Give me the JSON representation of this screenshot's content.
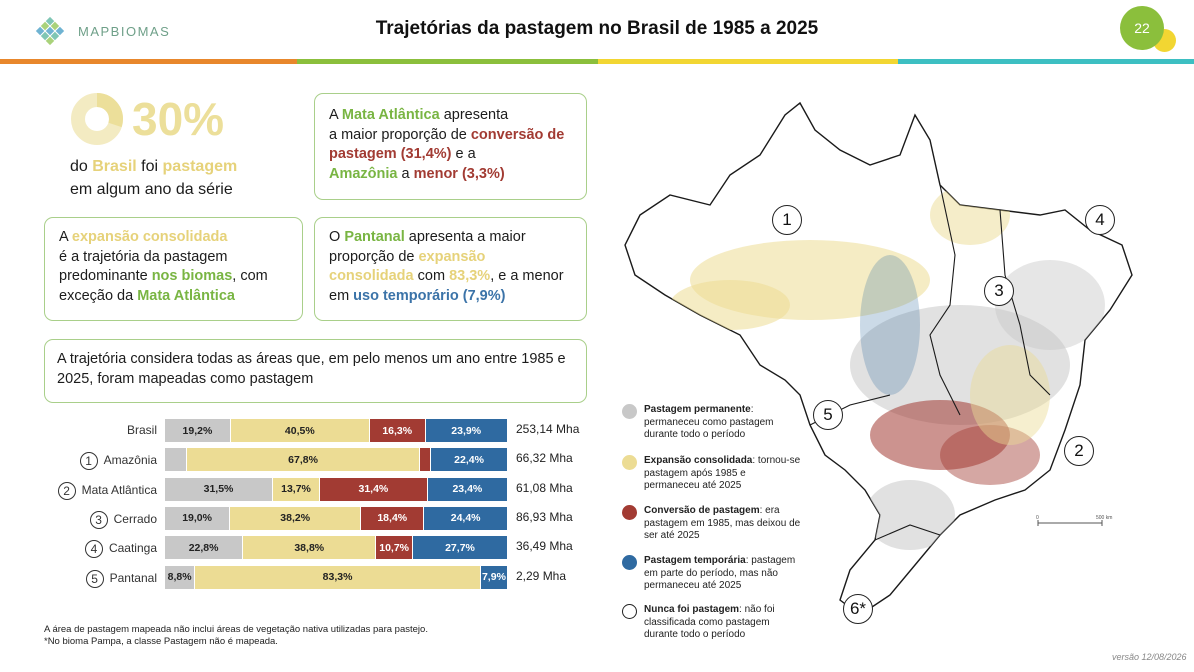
{
  "header": {
    "logo_text": "MAPBIOMAS",
    "title": "Trajetórias da pastagem no Brasil de 1985 a 2025",
    "page_number": "22"
  },
  "stripe_colors": [
    "#e8872c",
    "#8bbf3c",
    "#f2d632",
    "#3dbfc2"
  ],
  "highlight": {
    "percent": "30%",
    "value": 0.3,
    "line1_pre": "do ",
    "line1_brasil": "Brasil",
    "line1_mid": " foi ",
    "line1_pastagem": "pastagem",
    "line2": "em algum ano da série"
  },
  "card_mata": {
    "p1": "A ",
    "mata": "Mata Atlântica",
    "p2": " apresenta",
    "p3": "a maior proporção de ",
    "conv": "conversão de pastagem (31,4%)",
    "p4": " e a",
    "amaz": "Amazônia",
    "p5": " a ",
    "menor": "menor (3,3%)"
  },
  "card_expansao": {
    "p1": "A ",
    "exp": "expansão consolidada",
    "p2": "é a trajetória da pastagem predominante ",
    "biomas": "nos biomas",
    "p3": ", com exceção da ",
    "mata": "Mata Atlântica"
  },
  "card_pantanal": {
    "p1": "O ",
    "pant": "Pantanal",
    "p2": " apresenta a maior proporção de ",
    "exp": "expansão consolidada",
    "p3": " com ",
    "pct": "83,3%",
    "p4": ", e a menor em ",
    "uso": "uso temporário (7,9%)"
  },
  "card_trajetoria": {
    "text": "A trajetória considera todas as áreas que, em pelo menos um ano entre 1985 e 2025, foram mapeadas como pastagem"
  },
  "chart_data": {
    "type": "bar",
    "orientation": "horizontal-stacked-100",
    "categories": [
      "Brasil",
      "Amazônia",
      "Mata Atlântica",
      "Cerrado",
      "Caatinga",
      "Pantanal"
    ],
    "category_numbers": [
      "",
      "1",
      "2",
      "3",
      "4",
      "5"
    ],
    "series": [
      {
        "name": "Pastagem permanente",
        "color": "#c8c8c8",
        "values": [
          19.2,
          6.5,
          31.5,
          19.0,
          22.8,
          8.8
        ],
        "labels": [
          "19,2%",
          "",
          "31,5%",
          "19,0%",
          "22,8%",
          "8,8%"
        ]
      },
      {
        "name": "Expansão consolidada",
        "color": "#ecdc94",
        "values": [
          40.5,
          67.8,
          13.7,
          38.2,
          38.8,
          83.3
        ],
        "labels": [
          "40,5%",
          "67,8%",
          "13,7%",
          "38,2%",
          "38,8%",
          "83,3%"
        ]
      },
      {
        "name": "Conversão de pastagem",
        "color": "#a23b33",
        "values": [
          16.3,
          3.3,
          31.4,
          18.4,
          10.7,
          0.0
        ],
        "labels": [
          "16,3%",
          "",
          "31,4%",
          "18,4%",
          "10,7%",
          ""
        ]
      },
      {
        "name": "Pastagem temporária",
        "color": "#2f6aa1",
        "values": [
          23.9,
          22.4,
          23.4,
          24.4,
          27.7,
          7.9
        ],
        "labels": [
          "23,9%",
          "22,4%",
          "23,4%",
          "24,4%",
          "27,7%",
          "7,9%"
        ]
      }
    ],
    "totals": [
      "253,14 Mha",
      "66,32 Mha",
      "61,08 Mha",
      "86,93 Mha",
      "36,49 Mha",
      "2,29 Mha"
    ],
    "xlim": [
      0,
      100
    ]
  },
  "legend": [
    {
      "title": "Pastagem permanente",
      "desc": ": permaneceu como pastagem durante todo o período",
      "color": "#c8c8c8"
    },
    {
      "title": "Expansão consolidada",
      "desc": ": tornou-se pastagem após 1985 e permaneceu até 2025",
      "color": "#ecdc94"
    },
    {
      "title": "Conversão de pastagem",
      "desc": ": era pastagem em 1985, mas deixou de ser até 2025",
      "color": "#a23b33"
    },
    {
      "title": "Pastagem temporária",
      "desc": ": pastagem em parte do período, mas não permaneceu até 2025",
      "color": "#2f6aa1"
    },
    {
      "title": "Nunca foi pastagem",
      "desc": ": não foi classificada como pastagem durante todo o período",
      "color": "#ffffff"
    }
  ],
  "map": {
    "labels": [
      "1",
      "2",
      "3",
      "4",
      "5",
      "6*"
    ],
    "scale_start": "0",
    "scale_end": "500 km"
  },
  "footnotes": {
    "line1": "A área de pastagem mapeada não inclui áreas de vegetação nativa utilizadas para pastejo.",
    "line2": "*No bioma Pampa, a classe Pastagem não é mapeada."
  },
  "version": "versão 12/08/2026"
}
